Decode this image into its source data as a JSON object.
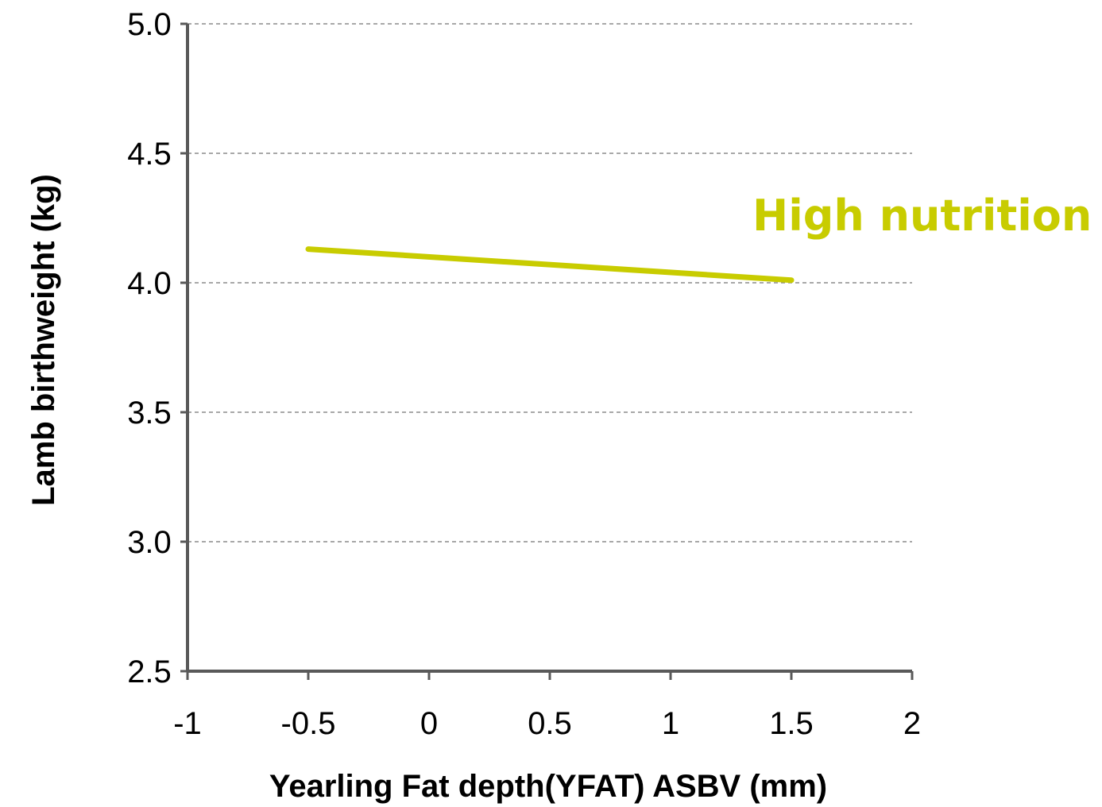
{
  "chart_data": {
    "type": "line",
    "xlabel": "Yearling Fat depth(YFAT) ASBV (mm)",
    "ylabel": "Lamb birthweight (kg)",
    "xlim": [
      -1,
      2
    ],
    "ylim": [
      2.5,
      5.0
    ],
    "x_ticks": [
      "-1",
      "-0.5",
      "0",
      "0.5",
      "1",
      "1.5",
      "2"
    ],
    "y_ticks": [
      "2.5",
      "3.0",
      "3.5",
      "4.0",
      "4.5",
      "5.0"
    ],
    "grid": "horizontal dashed",
    "series": [
      {
        "name": "High nutrition",
        "color": "#c8cc00",
        "x": [
          -0.5,
          1.5
        ],
        "y": [
          4.13,
          4.01
        ]
      }
    ]
  }
}
